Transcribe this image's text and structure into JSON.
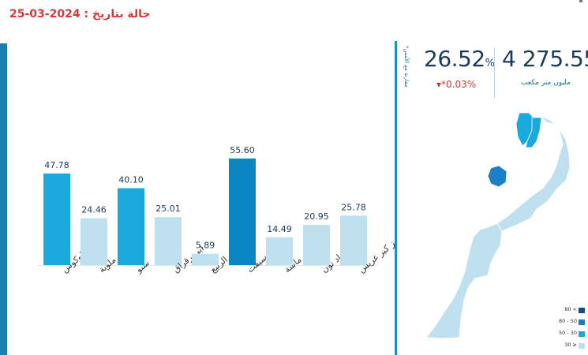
{
  "header": {
    "date_title": "حالة بتاريخ : 2024-03-25"
  },
  "stats": {
    "fill_percent": "26.52",
    "percent_unit": "%",
    "change_text": "▾*0.03%",
    "volume": "4 275.55",
    "volume_unit": "مليون متر مكعب",
    "compare_note": "*مقارنة مع الأمس"
  },
  "colors": {
    "bar_high": "#1aa9dd",
    "bar_low": "#bfe0ef",
    "bar_top": "#0a86c2",
    "map_base": "#bfe0ef",
    "map_30_50": "#1aa9dd",
    "map_50_80": "#1a7fc4",
    "map_80": "#0c4f8f",
    "accent_red": "#d13a3a"
  },
  "chart_data": {
    "type": "bar",
    "categories": [
      "اللوكوس",
      "ملوية",
      "سبو",
      "ابي رقراق",
      "ام الربيع",
      "تانسيفت",
      "سوس ماسة",
      "درعة واد نون",
      "زيز كير غريس"
    ],
    "values": [
      47.78,
      24.46,
      40.1,
      25.01,
      5.89,
      55.6,
      14.49,
      20.95,
      25.78
    ],
    "value_labels": [
      "47.78",
      "24.46",
      "40.10",
      "25.01",
      "5.89",
      "55.60",
      "14.49",
      "20.95",
      "25.78"
    ],
    "ylim": [
      0,
      60
    ],
    "title": "",
    "xlabel": "",
    "ylabel": ""
  },
  "legend": {
    "items": [
      {
        "label": "80 <",
        "color": "#0c4f8f"
      },
      {
        "label": "80 - 50",
        "color": "#1a7fc4"
      },
      {
        "label": "50 - 30",
        "color": "#1aa9dd"
      },
      {
        "label": "30 ≥",
        "color": "#bfe0ef"
      }
    ]
  }
}
